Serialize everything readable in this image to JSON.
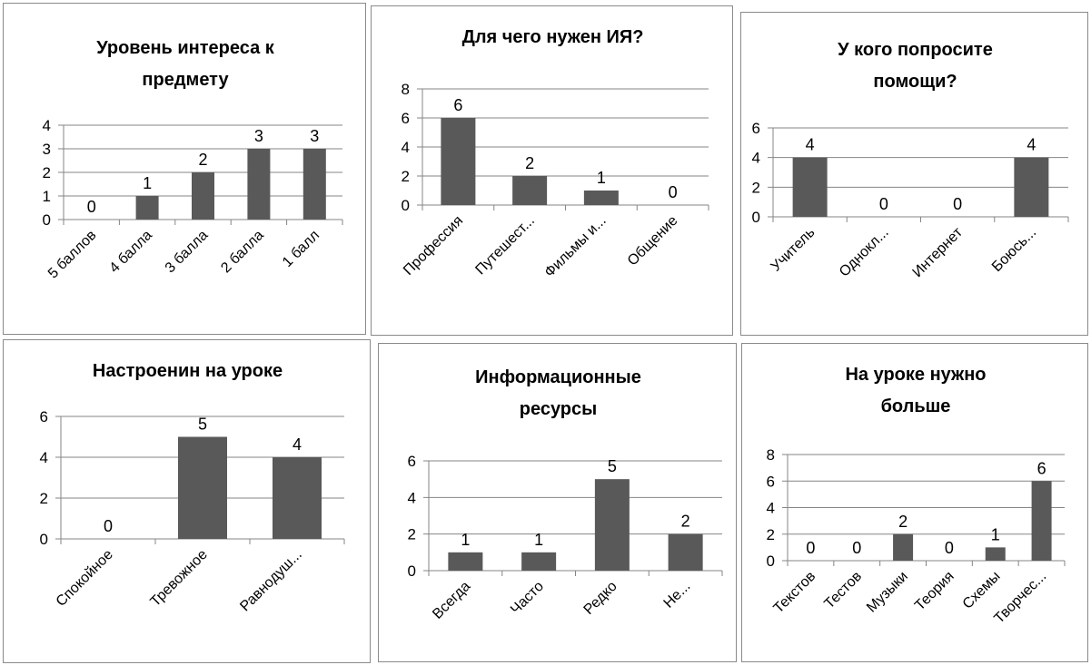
{
  "chart_data": [
    {
      "type": "bar",
      "title_lines": [
        "Уровень интереса к",
        "предмету"
      ],
      "categories": [
        "5 баллов",
        "4 балла",
        "3 балла",
        "2 балла",
        "1 балл"
      ],
      "values": [
        0,
        1,
        2,
        3,
        3
      ],
      "ylim": [
        0,
        4
      ],
      "yticks": [
        "0",
        "1",
        "2",
        "3",
        "4"
      ],
      "grid": true,
      "legend": "none"
    },
    {
      "type": "bar",
      "title_lines": [
        "Для чего нужен ИЯ?"
      ],
      "categories": [
        "Профессия",
        "Путешест...",
        "Фильмы и...",
        "Общение"
      ],
      "values": [
        6,
        2,
        1,
        0
      ],
      "ylim": [
        0,
        8
      ],
      "yticks": [
        "0",
        "2",
        "4",
        "6",
        "8"
      ],
      "grid": true,
      "legend": "none"
    },
    {
      "type": "bar",
      "title_lines": [
        "У кого попросите",
        "помощи?"
      ],
      "categories": [
        "Учитель",
        "Однокл...",
        "Интернет",
        "Боюсь..."
      ],
      "values": [
        4,
        0,
        0,
        4
      ],
      "ylim": [
        0,
        6
      ],
      "yticks": [
        "0",
        "2",
        "4",
        "6"
      ],
      "grid": true,
      "legend": "none"
    },
    {
      "type": "bar",
      "title_lines": [
        "Настроенин на уроке"
      ],
      "categories": [
        "Спокойное",
        "Тревожное",
        "Равнодуш..."
      ],
      "values": [
        0,
        5,
        4
      ],
      "ylim": [
        0,
        6
      ],
      "yticks": [
        "0",
        "2",
        "4",
        "6"
      ],
      "grid": true,
      "legend": "none"
    },
    {
      "type": "bar",
      "title_lines": [
        "Информационные",
        "ресурсы"
      ],
      "categories": [
        "Всегда",
        "Часто",
        "Редко",
        "Не..."
      ],
      "values": [
        1,
        1,
        5,
        2
      ],
      "ylim": [
        0,
        6
      ],
      "yticks": [
        "0",
        "2",
        "4",
        "6"
      ],
      "grid": true,
      "legend": "none"
    },
    {
      "type": "bar",
      "title_lines": [
        "На уроке нужно",
        "больше"
      ],
      "categories": [
        "Текстов",
        "Тестов",
        "Музыки",
        "Теория",
        "Схемы",
        "Творчес..."
      ],
      "values": [
        0,
        0,
        2,
        0,
        1,
        6
      ],
      "ylim": [
        0,
        8
      ],
      "yticks": [
        "0",
        "2",
        "4",
        "6",
        "8"
      ],
      "grid": true,
      "legend": "none"
    }
  ],
  "colors": {
    "bar": "#595959",
    "grid": "#858585",
    "border": "#8a8a8a"
  }
}
